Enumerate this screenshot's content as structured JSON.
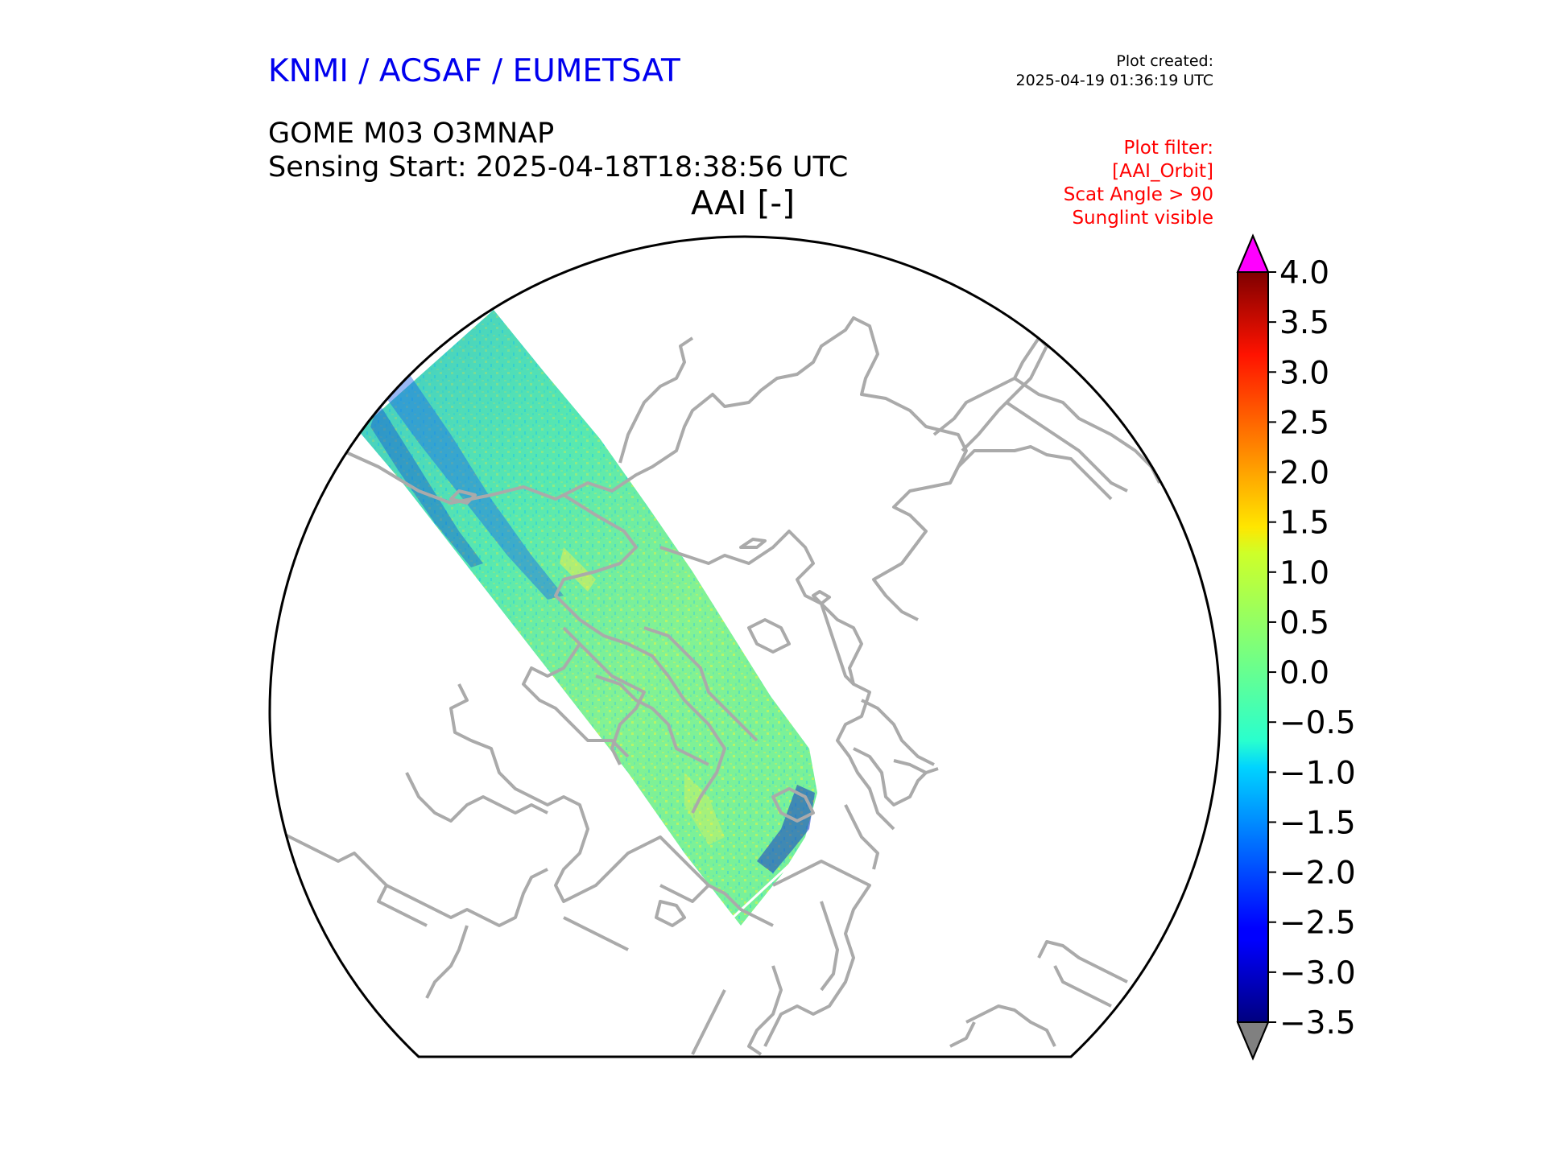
{
  "header": {
    "organization": "KNMI / ACSAF / EUMETSAT",
    "plot_created_label": "Plot created:",
    "plot_created_time": "2025-04-19 01:36:19 UTC",
    "product": "GOME M03 O3MNAP",
    "sensing_start": "Sensing Start: 2025-04-18T18:38:56 UTC",
    "map_title": "AAI [-]"
  },
  "filter": {
    "lines": [
      "Plot filter:",
      "[AAI_Orbit]",
      "Scat Angle > 90",
      "Sunglint visible"
    ]
  },
  "colorbar": {
    "min": -3.5,
    "max": 4.0,
    "ticks": [
      "4.0",
      "3.5",
      "3.0",
      "2.5",
      "2.0",
      "1.5",
      "1.0",
      "0.5",
      "0.0",
      "−0.5",
      "−1.0",
      "−1.5",
      "−2.0",
      "−2.5",
      "−3.0",
      "−3.5"
    ],
    "over_color": "#ff00ff",
    "under_color": "#808080",
    "colormap": "jet"
  },
  "colors": {
    "coastline": "#aaaaaa",
    "boundary": "#000000"
  }
}
